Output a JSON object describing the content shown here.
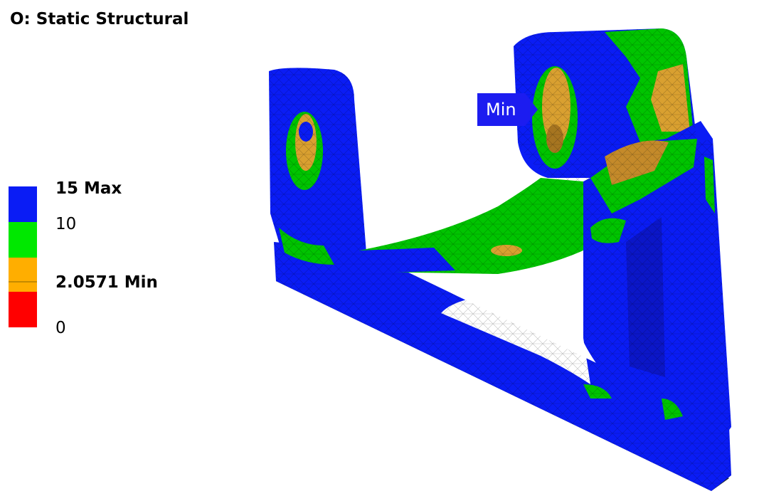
{
  "title": "O: Static Structural",
  "legend": {
    "entries": [
      {
        "label": "15 Max",
        "bold": true,
        "color": "#0a1cf5"
      },
      {
        "label": "10",
        "bold": false,
        "color": "#00e800"
      },
      {
        "label": "2.0571 Min",
        "bold": true,
        "color": "#ffae00"
      },
      {
        "label": "0",
        "bold": false,
        "color": "#ff0000"
      }
    ]
  },
  "probe": {
    "min_label": "Min"
  },
  "colors": {
    "blue": "#0a1cf5",
    "green": "#00c400",
    "orange": "#d9a030",
    "red": "#ff0000",
    "probe": "#1c1cf0"
  }
}
